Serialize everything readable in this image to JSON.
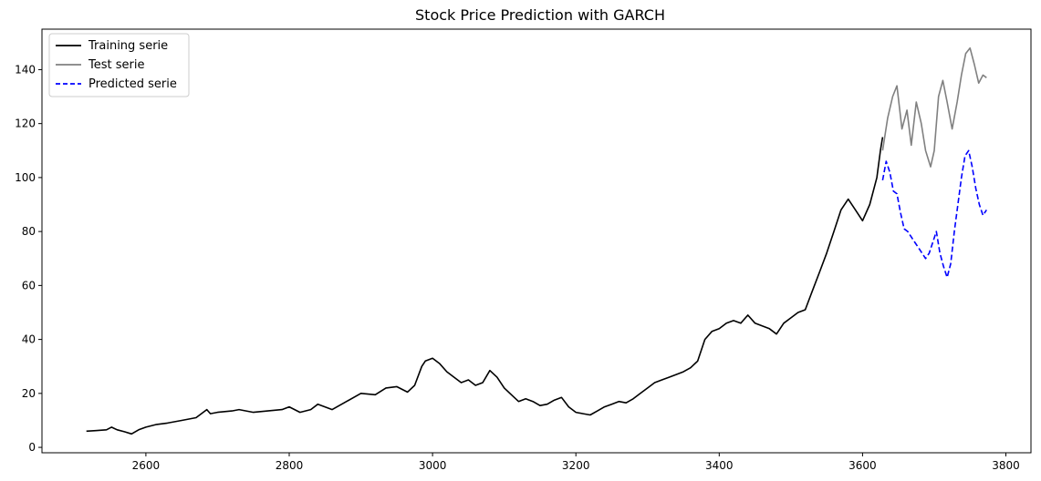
{
  "chart_data": {
    "type": "line",
    "title": "Stock Price Prediction with GARCH",
    "xlabel": "",
    "ylabel": "",
    "xlim": [
      2455,
      3835
    ],
    "ylim": [
      -2,
      155
    ],
    "xticks": [
      2600,
      2800,
      3000,
      3200,
      3400,
      3600,
      3800
    ],
    "yticks": [
      0,
      20,
      40,
      60,
      80,
      100,
      120,
      140
    ],
    "grid": false,
    "legend_position": "top-left",
    "series": [
      {
        "name": "Training serie",
        "color": "#000000",
        "style": "solid",
        "points": [
          [
            2517,
            6
          ],
          [
            2530,
            6.2
          ],
          [
            2545,
            6.5
          ],
          [
            2552,
            7.5
          ],
          [
            2560,
            6.5
          ],
          [
            2570,
            5.8
          ],
          [
            2580,
            5.0
          ],
          [
            2590,
            6.5
          ],
          [
            2600,
            7.5
          ],
          [
            2615,
            8.5
          ],
          [
            2630,
            9.0
          ],
          [
            2650,
            10.0
          ],
          [
            2670,
            11.0
          ],
          [
            2685,
            14.0
          ],
          [
            2690,
            12.5
          ],
          [
            2700,
            13.0
          ],
          [
            2720,
            13.5
          ],
          [
            2730,
            14.0
          ],
          [
            2750,
            13.0
          ],
          [
            2770,
            13.5
          ],
          [
            2790,
            14.0
          ],
          [
            2800,
            15.0
          ],
          [
            2815,
            13.0
          ],
          [
            2830,
            14.0
          ],
          [
            2840,
            16.0
          ],
          [
            2860,
            14.0
          ],
          [
            2880,
            17.0
          ],
          [
            2900,
            20.0
          ],
          [
            2920,
            19.5
          ],
          [
            2935,
            22.0
          ],
          [
            2950,
            22.5
          ],
          [
            2965,
            20.5
          ],
          [
            2975,
            23.0
          ],
          [
            2985,
            30.0
          ],
          [
            2990,
            32.0
          ],
          [
            3000,
            33.0
          ],
          [
            3010,
            31.0
          ],
          [
            3020,
            28.0
          ],
          [
            3030,
            26.0
          ],
          [
            3040,
            24.0
          ],
          [
            3050,
            25.0
          ],
          [
            3060,
            23.0
          ],
          [
            3070,
            24.0
          ],
          [
            3080,
            28.5
          ],
          [
            3090,
            26.0
          ],
          [
            3100,
            22.0
          ],
          [
            3110,
            19.5
          ],
          [
            3120,
            17.0
          ],
          [
            3130,
            18.0
          ],
          [
            3140,
            17.0
          ],
          [
            3150,
            15.5
          ],
          [
            3160,
            16.0
          ],
          [
            3170,
            17.5
          ],
          [
            3180,
            18.5
          ],
          [
            3190,
            15.0
          ],
          [
            3200,
            13.0
          ],
          [
            3210,
            12.5
          ],
          [
            3220,
            12.0
          ],
          [
            3230,
            13.5
          ],
          [
            3240,
            15.0
          ],
          [
            3250,
            16.0
          ],
          [
            3260,
            17.0
          ],
          [
            3270,
            16.5
          ],
          [
            3280,
            18.0
          ],
          [
            3290,
            20.0
          ],
          [
            3300,
            22.0
          ],
          [
            3310,
            24.0
          ],
          [
            3320,
            25.0
          ],
          [
            3330,
            26.0
          ],
          [
            3340,
            27.0
          ],
          [
            3350,
            28.0
          ],
          [
            3360,
            29.5
          ],
          [
            3370,
            32.0
          ],
          [
            3380,
            40.0
          ],
          [
            3390,
            43.0
          ],
          [
            3400,
            44.0
          ],
          [
            3410,
            46.0
          ],
          [
            3420,
            47.0
          ],
          [
            3430,
            46.0
          ],
          [
            3440,
            49.0
          ],
          [
            3450,
            46.0
          ],
          [
            3460,
            45.0
          ],
          [
            3470,
            44.0
          ],
          [
            3480,
            42.0
          ],
          [
            3490,
            46.0
          ],
          [
            3500,
            48.0
          ],
          [
            3510,
            50.0
          ],
          [
            3520,
            51.0
          ],
          [
            3530,
            58.0
          ],
          [
            3540,
            65.0
          ],
          [
            3550,
            72.0
          ],
          [
            3560,
            80.0
          ],
          [
            3570,
            88.0
          ],
          [
            3580,
            92.0
          ],
          [
            3590,
            88.0
          ],
          [
            3600,
            84.0
          ],
          [
            3610,
            90.0
          ],
          [
            3620,
            100.0
          ],
          [
            3625,
            110.0
          ],
          [
            3628,
            115.0
          ]
        ]
      },
      {
        "name": "Test serie",
        "color": "#808080",
        "style": "solid",
        "points": [
          [
            3628,
            110
          ],
          [
            3635,
            122
          ],
          [
            3642,
            130
          ],
          [
            3648,
            134
          ],
          [
            3655,
            118
          ],
          [
            3662,
            125
          ],
          [
            3668,
            112
          ],
          [
            3675,
            128
          ],
          [
            3682,
            120
          ],
          [
            3688,
            110
          ],
          [
            3695,
            104
          ],
          [
            3700,
            110
          ],
          [
            3706,
            130
          ],
          [
            3712,
            136
          ],
          [
            3718,
            128
          ],
          [
            3725,
            118
          ],
          [
            3732,
            128
          ],
          [
            3738,
            138
          ],
          [
            3744,
            146
          ],
          [
            3750,
            148
          ],
          [
            3756,
            142
          ],
          [
            3762,
            135
          ],
          [
            3768,
            138
          ],
          [
            3773,
            137
          ]
        ]
      },
      {
        "name": "Predicted serie",
        "color": "#0000ff",
        "style": "dashed",
        "points": [
          [
            3628,
            99
          ],
          [
            3633,
            106
          ],
          [
            3638,
            102
          ],
          [
            3643,
            95
          ],
          [
            3648,
            94
          ],
          [
            3653,
            87
          ],
          [
            3658,
            81
          ],
          [
            3663,
            80
          ],
          [
            3668,
            78
          ],
          [
            3673,
            76
          ],
          [
            3678,
            74
          ],
          [
            3683,
            72
          ],
          [
            3688,
            70
          ],
          [
            3693,
            72
          ],
          [
            3698,
            76
          ],
          [
            3703,
            80
          ],
          [
            3708,
            72
          ],
          [
            3713,
            67
          ],
          [
            3718,
            63
          ],
          [
            3723,
            68
          ],
          [
            3728,
            80
          ],
          [
            3733,
            90
          ],
          [
            3738,
            100
          ],
          [
            3743,
            108
          ],
          [
            3748,
            110
          ],
          [
            3753,
            104
          ],
          [
            3758,
            96
          ],
          [
            3763,
            90
          ],
          [
            3768,
            86
          ],
          [
            3773,
            88
          ]
        ]
      }
    ]
  }
}
